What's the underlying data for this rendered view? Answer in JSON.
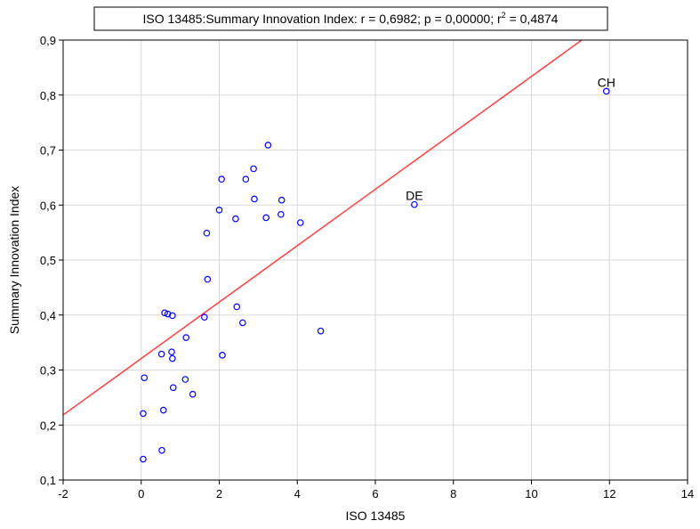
{
  "chart_data": {
    "type": "scatter",
    "title": "ISO 13485:Summary Innovation Index:    r = 0,6982; p = 0,00000; r",
    "title_superscript": "2",
    "title_suffix": " = 0,4874",
    "xlabel": "ISO 13485",
    "ylabel": "Summary Innovation Index",
    "xlim": [
      -2,
      14
    ],
    "ylim": [
      0.1,
      0.9
    ],
    "x_ticks": [
      -2,
      0,
      2,
      4,
      6,
      8,
      10,
      12,
      14
    ],
    "y_ticks": [
      0.1,
      0.2,
      0.3,
      0.4,
      0.5,
      0.6,
      0.7,
      0.8,
      0.9
    ],
    "x_tick_labels": [
      "-2",
      "0",
      "2",
      "4",
      "6",
      "8",
      "10",
      "12",
      "14"
    ],
    "y_tick_labels": [
      "0,1",
      "0,2",
      "0,3",
      "0,4",
      "0,5",
      "0,6",
      "0,7",
      "0,8",
      "0,9"
    ],
    "grid": true,
    "colors": {
      "points": "#0000ff",
      "fit_line": "#ff4040",
      "grid": "#d9d9d9"
    },
    "regression": {
      "intercept": 0.3209,
      "slope": 0.0513
    },
    "points": [
      {
        "x": 0.05,
        "y": 0.138
      },
      {
        "x": 0.05,
        "y": 0.221
      },
      {
        "x": 0.08,
        "y": 0.286
      },
      {
        "x": 0.53,
        "y": 0.154
      },
      {
        "x": 0.57,
        "y": 0.227
      },
      {
        "x": 0.52,
        "y": 0.329
      },
      {
        "x": 0.6,
        "y": 0.404
      },
      {
        "x": 0.68,
        "y": 0.402
      },
      {
        "x": 0.8,
        "y": 0.399
      },
      {
        "x": 0.78,
        "y": 0.333
      },
      {
        "x": 0.8,
        "y": 0.321
      },
      {
        "x": 0.82,
        "y": 0.268
      },
      {
        "x": 1.13,
        "y": 0.283
      },
      {
        "x": 1.15,
        "y": 0.359
      },
      {
        "x": 1.32,
        "y": 0.256
      },
      {
        "x": 1.62,
        "y": 0.396
      },
      {
        "x": 1.68,
        "y": 0.549
      },
      {
        "x": 1.7,
        "y": 0.465
      },
      {
        "x": 2.0,
        "y": 0.591
      },
      {
        "x": 2.06,
        "y": 0.647
      },
      {
        "x": 2.08,
        "y": 0.327
      },
      {
        "x": 2.42,
        "y": 0.575
      },
      {
        "x": 2.45,
        "y": 0.415
      },
      {
        "x": 2.6,
        "y": 0.386
      },
      {
        "x": 2.68,
        "y": 0.647
      },
      {
        "x": 2.88,
        "y": 0.666
      },
      {
        "x": 2.9,
        "y": 0.611
      },
      {
        "x": 3.2,
        "y": 0.577
      },
      {
        "x": 3.25,
        "y": 0.709
      },
      {
        "x": 3.58,
        "y": 0.583
      },
      {
        "x": 3.6,
        "y": 0.609
      },
      {
        "x": 4.08,
        "y": 0.568
      },
      {
        "x": 4.6,
        "y": 0.371
      },
      {
        "x": 7.0,
        "y": 0.601,
        "label": "DE"
      },
      {
        "x": 11.92,
        "y": 0.807,
        "label": "CH"
      }
    ]
  }
}
